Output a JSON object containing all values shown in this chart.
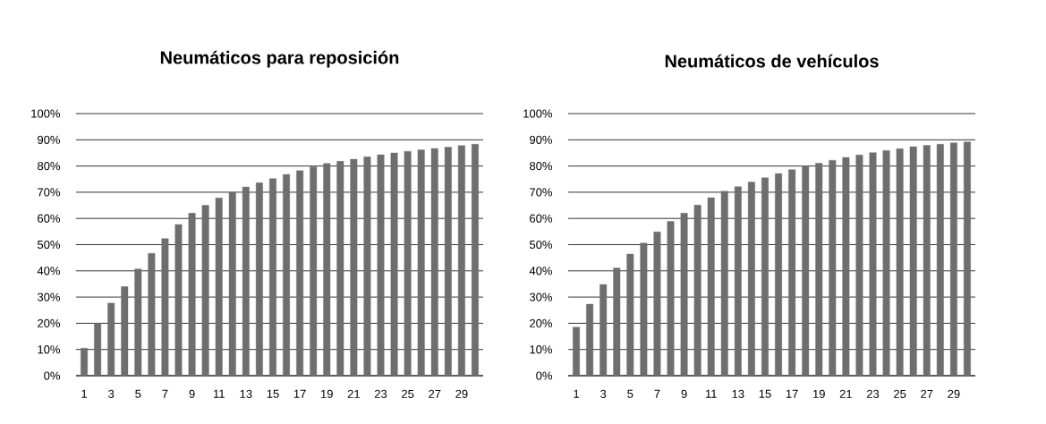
{
  "chart_data": [
    {
      "type": "bar",
      "title": "Neumáticos para reposición",
      "categories": [
        "1",
        null,
        "3",
        null,
        "5",
        null,
        "7",
        null,
        "9",
        null,
        "11",
        null,
        "13",
        null,
        "15",
        null,
        "17",
        null,
        "19",
        null,
        "21",
        null,
        "23",
        null,
        "25",
        null,
        "27",
        null,
        "29",
        null
      ],
      "values": [
        10.5,
        20,
        27.7,
        34,
        40.7,
        46.7,
        52.3,
        57.7,
        62,
        65,
        67.8,
        70,
        72,
        73.6,
        75.2,
        76.8,
        78.2,
        79.7,
        81,
        81.8,
        82.6,
        83.5,
        84.3,
        85,
        85.6,
        86.2,
        86.7,
        87.2,
        87.8,
        88.3
      ],
      "color": "#6e6e6e",
      "ylim": [
        0,
        100
      ],
      "yticks": [
        {
          "value": 0,
          "label": "0%"
        },
        {
          "value": 10,
          "label": "10%"
        },
        {
          "value": 20,
          "label": "20%"
        },
        {
          "value": 30,
          "label": "30%"
        },
        {
          "value": 40,
          "label": "40%"
        },
        {
          "value": 50,
          "label": "50%"
        },
        {
          "value": 60,
          "label": "60%"
        },
        {
          "value": 70,
          "label": "70%"
        },
        {
          "value": 80,
          "label": "80%"
        },
        {
          "value": 90,
          "label": "90%"
        },
        {
          "value": 100,
          "label": "100%"
        }
      ],
      "grid": "y"
    },
    {
      "type": "bar",
      "title": "Neumáticos de vehículos",
      "categories": [
        "1",
        null,
        "3",
        null,
        "5",
        null,
        "7",
        null,
        "9",
        null,
        "11",
        null,
        "13",
        null,
        "15",
        null,
        "17",
        null,
        "19",
        null,
        "21",
        null,
        "23",
        null,
        "25",
        null,
        "27",
        null,
        "29",
        null
      ],
      "values": [
        18.5,
        27.3,
        34.8,
        41.1,
        46.4,
        50.6,
        54.9,
        58.9,
        62,
        65.1,
        67.9,
        70.4,
        72.1,
        73.9,
        75.5,
        77.1,
        78.6,
        80,
        81.1,
        82.2,
        83.3,
        84.2,
        85.1,
        85.9,
        86.6,
        87.4,
        87.9,
        88.3,
        88.8,
        89.2
      ],
      "color": "#6e6e6e",
      "ylim": [
        0,
        100
      ],
      "yticks": [
        {
          "value": 0,
          "label": "0%"
        },
        {
          "value": 10,
          "label": "10%"
        },
        {
          "value": 20,
          "label": "20%"
        },
        {
          "value": 30,
          "label": "30%"
        },
        {
          "value": 40,
          "label": "40%"
        },
        {
          "value": 50,
          "label": "50%"
        },
        {
          "value": 60,
          "label": "60%"
        },
        {
          "value": 70,
          "label": "70%"
        },
        {
          "value": 80,
          "label": "80%"
        },
        {
          "value": 90,
          "label": "90%"
        },
        {
          "value": 100,
          "label": "100%"
        }
      ],
      "grid": "y"
    }
  ]
}
